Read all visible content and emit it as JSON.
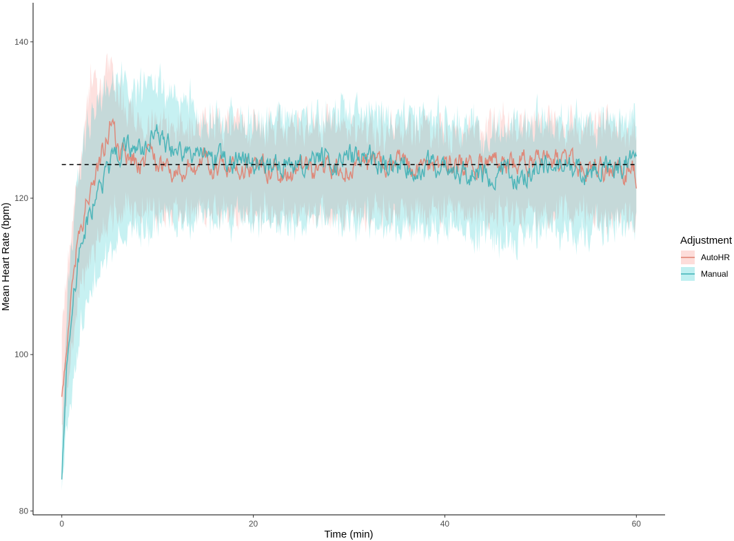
{
  "chart_data": {
    "type": "line",
    "title": "",
    "xlabel": "Time (min)",
    "ylabel": "Mean Heart Rate (bpm)",
    "xlim": [
      -3,
      63
    ],
    "ylim": [
      79.5,
      145
    ],
    "x_ticks": [
      0,
      20,
      40,
      60
    ],
    "y_ticks": [
      80,
      100,
      120,
      140
    ],
    "grid": false,
    "legend": {
      "title": "Adjustment",
      "position": "right"
    },
    "reference_line": {
      "y": 124.3,
      "x_range": [
        0,
        60
      ],
      "style": "dashed",
      "color": "#000000"
    },
    "series": [
      {
        "name": "AutoHR",
        "color": "#e0806f",
        "fill": "#f8766d",
        "x": [
          0,
          0.5,
          1,
          1.5,
          2,
          2.5,
          3,
          4,
          5,
          6,
          8,
          10,
          12,
          15,
          20,
          25,
          30,
          35,
          40,
          45,
          50,
          55,
          60
        ],
        "y": [
          94.5,
          100.5,
          108,
          113,
          116.5,
          119,
          121.5,
          124.5,
          129.5,
          125.5,
          124.5,
          124.5,
          124,
          124.5,
          124,
          123.5,
          124,
          124.2,
          124,
          124.5,
          125,
          124,
          123
        ],
        "band_upper": [
          103,
          110,
          116,
          122,
          126,
          129,
          135,
          135,
          137,
          133,
          130,
          130,
          129,
          130,
          129,
          129,
          129,
          129,
          129,
          129,
          130,
          129,
          129
        ],
        "band_lower": [
          89,
          93,
          100,
          105,
          108,
          111,
          113,
          115,
          118,
          118,
          118,
          118,
          118,
          118,
          118,
          118,
          118,
          118,
          118,
          118,
          118,
          118,
          117
        ]
      },
      {
        "name": "Manual",
        "color": "#3fb0b5",
        "fill": "#00bfc4",
        "x": [
          0,
          0.5,
          1,
          1.5,
          2,
          2.5,
          3,
          4,
          5,
          6,
          8,
          10,
          12,
          15,
          20,
          25,
          30,
          35,
          40,
          45,
          50,
          55,
          60
        ],
        "y": [
          84,
          98,
          104,
          110,
          114,
          116.5,
          118.5,
          122,
          124,
          126.5,
          126,
          128,
          126,
          125,
          124.5,
          124,
          125.5,
          124,
          124,
          122.5,
          124,
          123.5,
          125
        ],
        "band_upper": [
          90,
          105,
          113,
          120,
          124,
          127,
          130,
          133,
          135,
          135,
          134,
          135,
          133,
          131,
          130,
          130,
          131,
          130,
          130,
          129,
          130,
          129,
          130
        ],
        "band_lower": [
          82,
          90,
          95,
          100,
          103,
          106,
          108,
          111,
          113,
          115,
          116,
          117,
          117,
          117,
          117,
          117,
          117,
          117,
          116,
          114,
          116,
          116,
          117
        ]
      }
    ]
  }
}
